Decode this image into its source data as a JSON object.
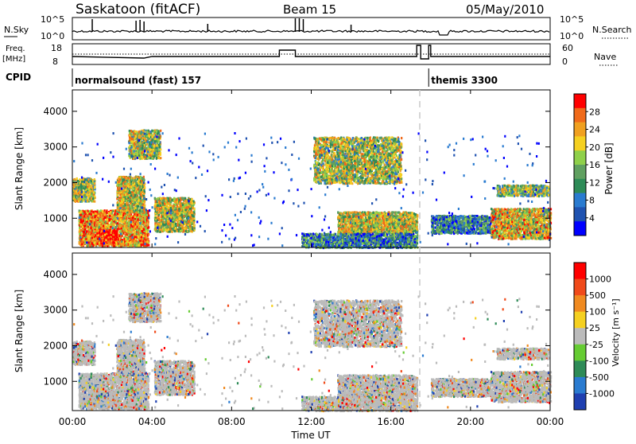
{
  "header": {
    "station": "Saskatoon (fitACF)",
    "beam": "Beam 15",
    "date": "05/May/2010"
  },
  "nsky_panel": {
    "left_label": "N.Sky",
    "right_label": "N.Search",
    "ticks": [
      "10^5",
      "10^0"
    ],
    "right_ticks": [
      "10^5",
      "10^0"
    ]
  },
  "freq_panel": {
    "left_label_1": "Freq.",
    "left_label_2": "[MHz]",
    "right_label": "Nave",
    "left_ticks": [
      "18",
      "8"
    ],
    "right_ticks": [
      "60",
      "0"
    ]
  },
  "cpid_panel": {
    "label": "CPID",
    "modes": [
      {
        "name": "normalsound (fast) 157",
        "start": 0,
        "end": 17.9
      },
      {
        "name": "themis 3300",
        "start": 17.9,
        "end": 24
      }
    ]
  },
  "chart_data": [
    {
      "type": "heatmap",
      "name": "power",
      "ylabel": "Slant Range [km]",
      "ylim": [
        180,
        4600
      ],
      "yticks": [
        "1000",
        "2000",
        "3000",
        "4000"
      ],
      "xlim": [
        0,
        24
      ],
      "colorbar_label": "Power [dB]",
      "colorbar_ticks": [
        "28",
        "24",
        "20",
        "16",
        "12",
        "8",
        "4"
      ],
      "colorbar_colors": [
        "#0000ff",
        "#1f52b0",
        "#2a7bd0",
        "#2e8b57",
        "#60a060",
        "#8fd04a",
        "#f5d020",
        "#f0a020",
        "#f06a1a",
        "#ff0000"
      ],
      "regions": [
        {
          "t0": 0.0,
          "t1": 1.1,
          "r0": 1500,
          "r1": 2150,
          "level": 0.55
        },
        {
          "t0": 0.3,
          "t1": 3.8,
          "r0": 250,
          "r1": 1250,
          "level": 0.75
        },
        {
          "t0": 1.2,
          "t1": 2.2,
          "r0": 300,
          "r1": 700,
          "level": 0.95
        },
        {
          "t0": 2.2,
          "t1": 3.6,
          "r0": 1200,
          "r1": 2200,
          "level": 0.6
        },
        {
          "t0": 2.8,
          "t1": 4.4,
          "r0": 2700,
          "r1": 3500,
          "level": 0.55
        },
        {
          "t0": 4.1,
          "t1": 6.1,
          "r0": 650,
          "r1": 1600,
          "level": 0.6
        },
        {
          "t0": 12.1,
          "t1": 16.5,
          "r0": 2000,
          "r1": 3300,
          "level": 0.55
        },
        {
          "t0": 13.3,
          "t1": 17.3,
          "r0": 600,
          "r1": 1200,
          "level": 0.6
        },
        {
          "t0": 11.5,
          "t1": 17.3,
          "r0": 200,
          "r1": 600,
          "level": 0.3
        },
        {
          "t0": 18.0,
          "t1": 21.0,
          "r0": 600,
          "r1": 1100,
          "level": 0.3
        },
        {
          "t0": 21.0,
          "t1": 24.0,
          "r0": 450,
          "r1": 1300,
          "level": 0.65
        },
        {
          "t0": 21.3,
          "t1": 23.9,
          "r0": 1650,
          "r1": 1950,
          "level": 0.5
        }
      ]
    },
    {
      "type": "heatmap",
      "name": "velocity",
      "ylabel": "Slant Range [km]",
      "ylim": [
        180,
        4600
      ],
      "yticks": [
        "1000",
        "2000",
        "3000",
        "4000"
      ],
      "xlim": [
        0,
        24
      ],
      "xticks": [
        "00:00",
        "04:00",
        "08:00",
        "12:00",
        "16:00",
        "20:00",
        "00:00"
      ],
      "xlabel": "Time UT",
      "colorbar_label": "Velocity [m s⁻¹]",
      "colorbar_ticks": [
        "1000",
        "500",
        "100",
        "25",
        "-25",
        "-100",
        "-500",
        "-1000"
      ],
      "colorbar_colors": [
        "#1f3fb0",
        "#2a7bd0",
        "#2e8b57",
        "#66cc33",
        "#bbbbbb",
        "#f5d020",
        "#f08a20",
        "#f04a1a",
        "#ff0000"
      ]
    }
  ]
}
